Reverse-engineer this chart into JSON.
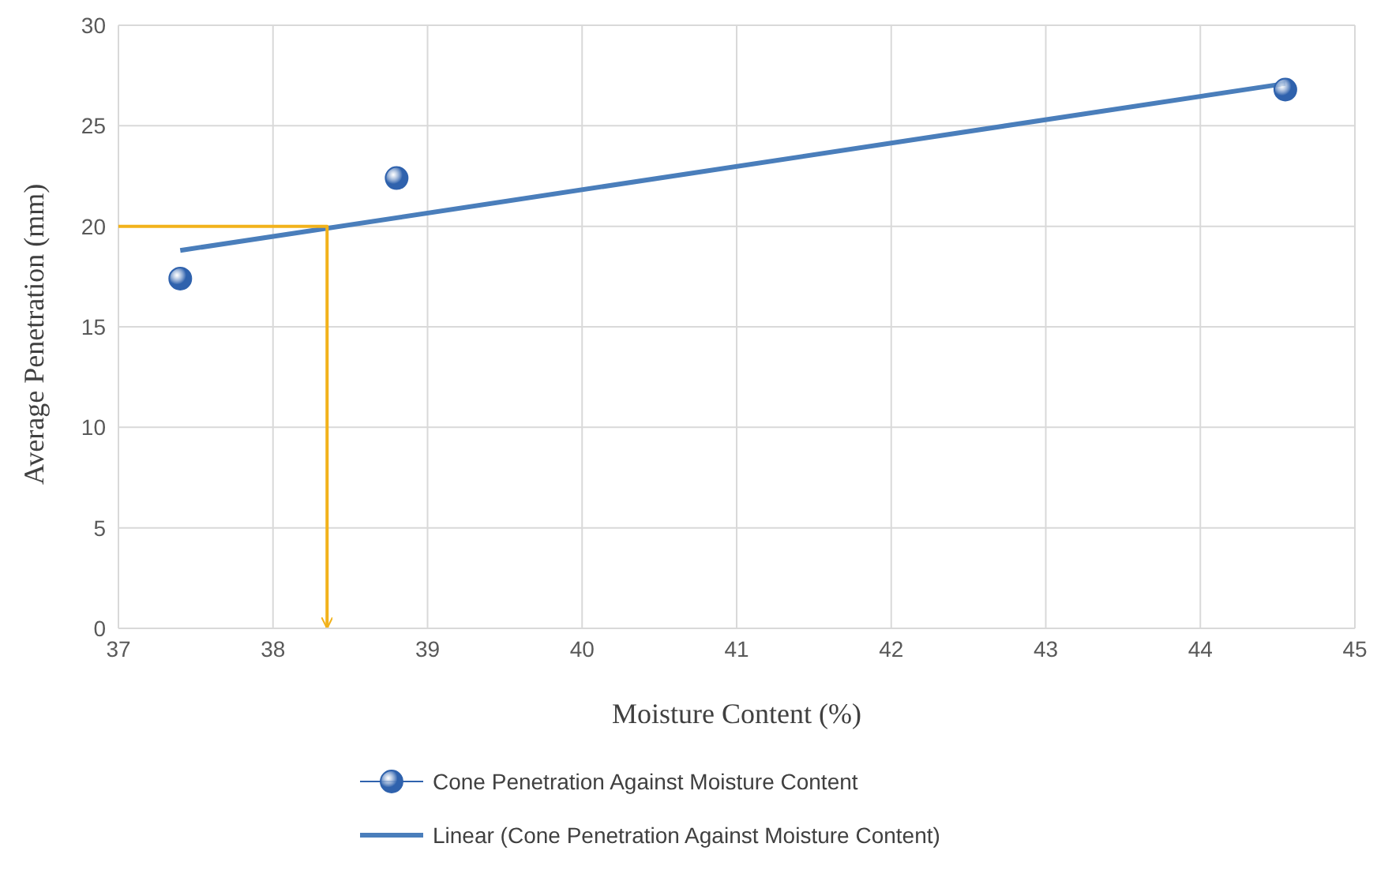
{
  "chart_data": {
    "type": "scatter",
    "xlabel": "Moisture Content (%)",
    "ylabel": "Average Penetration (mm)",
    "xlim": [
      37,
      45
    ],
    "xticks": [
      37,
      38,
      39,
      40,
      41,
      42,
      43,
      44,
      45
    ],
    "ylim": [
      0,
      30
    ],
    "yticks": [
      0,
      5,
      10,
      15,
      20,
      25,
      30
    ],
    "grid": true,
    "legend": "bottom",
    "series": [
      {
        "name": "Cone Penetration Against Moisture Content",
        "marker": "circle",
        "color": "#2f62ad",
        "x": [
          37.4,
          38.8,
          44.55
        ],
        "values": [
          17.4,
          22.4,
          26.8
        ]
      },
      {
        "name": "Linear (Cone Penetration Against Moisture Content)",
        "type": "line",
        "marker": "none",
        "color": "#4a7ebb",
        "x": [
          37.4,
          44.55
        ],
        "values": [
          18.8,
          27.1
        ]
      },
      {
        "type": "line",
        "marker": "none",
        "color": "#f2b21b",
        "x": [
          37,
          38.35,
          38.35
        ],
        "values": [
          20,
          20,
          0
        ]
      }
    ]
  }
}
